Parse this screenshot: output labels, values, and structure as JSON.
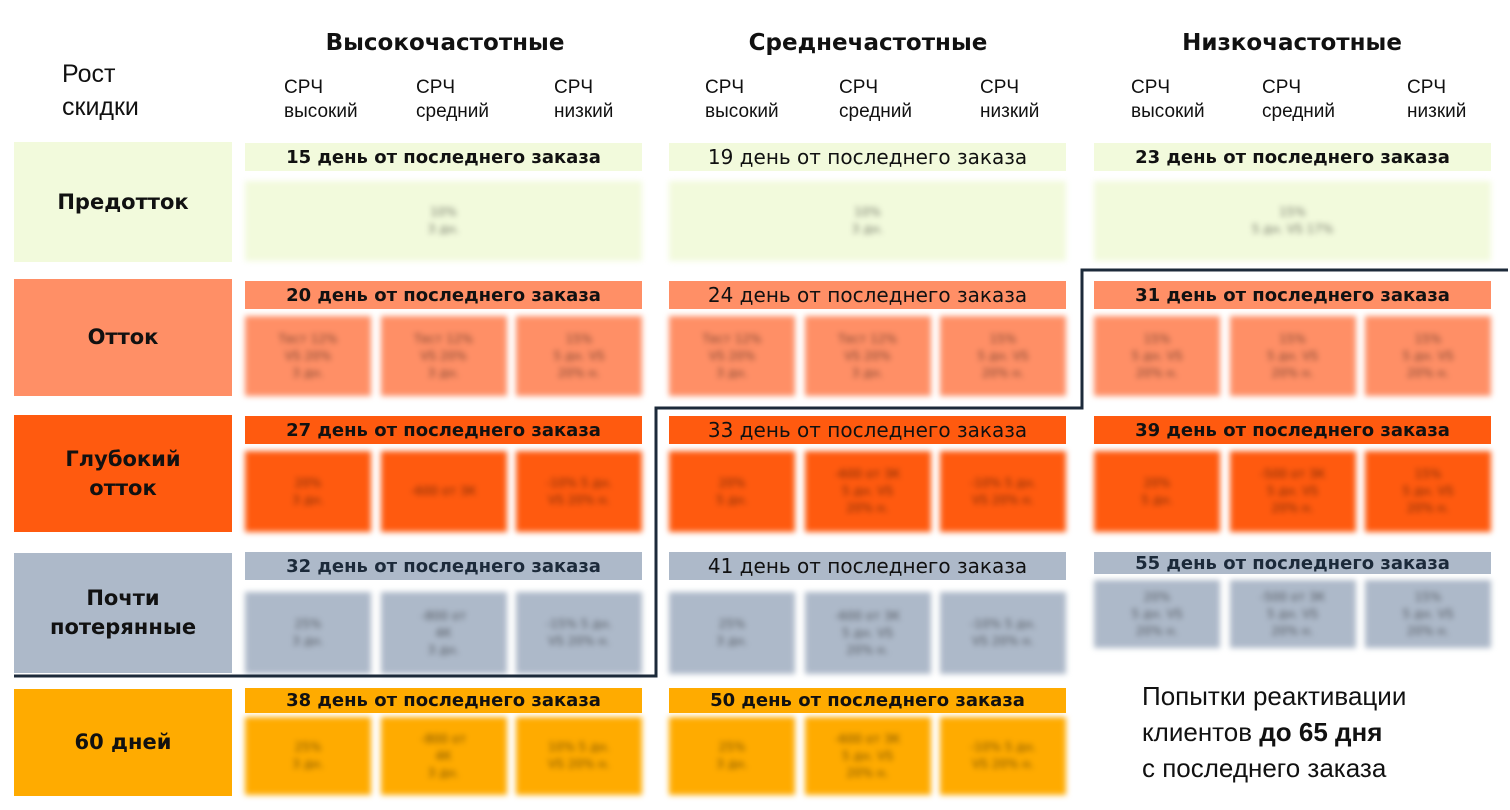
{
  "corner_label": "Рост\nскидки",
  "groups": [
    {
      "title": "Высокочастотные",
      "subs": [
        "СРЧ\nвысокий",
        "СРЧ\nсредний",
        "СРЧ\nнизкий"
      ]
    },
    {
      "title": "Среднечастотные",
      "subs": [
        "СРЧ\nвысокий",
        "СРЧ\nсредний",
        "СРЧ\nнизкий"
      ]
    },
    {
      "title": "Низкочастотные",
      "subs": [
        "СРЧ\nвысокий",
        "СРЧ\nсредний",
        "СРЧ\nнизкий"
      ]
    }
  ],
  "rows": [
    {
      "label": "Предотток",
      "color": "#f2fadc",
      "band_color": "#f2fadc",
      "bands": [
        "15 день от последнего заказа",
        "19 день от последнего заказа",
        "23 день от последнего заказа"
      ],
      "cells": [
        [
          "10%\n3 дн."
        ],
        [
          "10%\n3 дн."
        ],
        [
          "15%\n5 дн. VS 17%"
        ]
      ]
    },
    {
      "label": "Отток",
      "color": "#ff8f66",
      "band_color": "#ff8f66",
      "bands": [
        "20 день от последнего заказа",
        "24 день от последнего заказа",
        "31 день от последнего заказа"
      ],
      "cells": [
        [
          "Тест 12%\nVS 20%\n3 дн.",
          "Тест 12%\nVS 20%\n3 дн.",
          "15%\n5 дн. VS\n20% н."
        ],
        [
          "Тест 12%\nVS 20%\n3 дн.",
          "Тест 12%\nVS 20%\n3 дн.",
          "15%\n5 дн. VS\n20% н."
        ],
        [
          "15%\n5 дн. VS\n20% н.",
          "15%\n5 дн. VS\n20% н.",
          "15%\n5 дн. VS\n20% н."
        ]
      ]
    },
    {
      "label": "Глубокий\nотток",
      "color": "#ff5a0f",
      "band_color": "#ff5a0f",
      "bands": [
        "27 день от последнего заказа",
        "33 день от последнего заказа",
        "39 день от последнего заказа"
      ],
      "cells": [
        [
          "20%\n3 дн.",
          "-600 от 3К",
          "-10% 5 дн.\nVS 20% н."
        ],
        [
          "20%\n5 дн.",
          "-600 от 3К\n5 дн. VS\n20% н.",
          "-10% 5 дн.\nVS 20% н."
        ],
        [
          "20%\n5 дн.",
          "-500 от 3К\n5 дн. VS\n20% н.",
          "15%\n5 дн. VS\n20% н."
        ]
      ]
    },
    {
      "label": "Почти\nпотерянные",
      "color": "#adb9c9",
      "band_color": "#adb9c9",
      "bands": [
        "32 день от последнего заказа",
        "41 день от последнего заказа",
        "55 день от последнего заказа"
      ],
      "cells": [
        [
          "25%\n3 дн.",
          "-800 от\n4К\n3 дн.",
          "-15% 5 дн.\nVS 20% н."
        ],
        [
          "25%\n3 дн.",
          "-600 от 3К\n5 дн. VS\n20% н.",
          "-10% 5 дн.\nVS 20% н."
        ],
        [
          "20%\n5 дн. VS\n20% н.",
          "-500 от 3К\n5 дн. VS\n20% н.",
          "15%\n5 дн. VS\n20% н."
        ]
      ]
    },
    {
      "label": "60 дней",
      "color": "#ffab00",
      "band_color": "#ffab00",
      "bands": [
        "38 день от последнего заказа",
        "50 день от последнего заказа"
      ],
      "cells": [
        [
          "25%\n3 дн.",
          "-800 от\n4К\n3 дн.",
          "10% 5 дн.\nVS 20% н."
        ],
        [
          "25%\n3 дн.",
          "-600 от 3К\n5 дн. VS\n20% н.",
          "-10% 5 дн.\nVS 20% н."
        ]
      ]
    }
  ],
  "note": {
    "line1": "Попытки реактивации",
    "line2a": "клиентов ",
    "line2b": "до 65 дня",
    "line3": "с последнего заказа"
  },
  "colors": {
    "border_line": "#1c2a3a",
    "band_text_dark": "#1c2a3a"
  }
}
